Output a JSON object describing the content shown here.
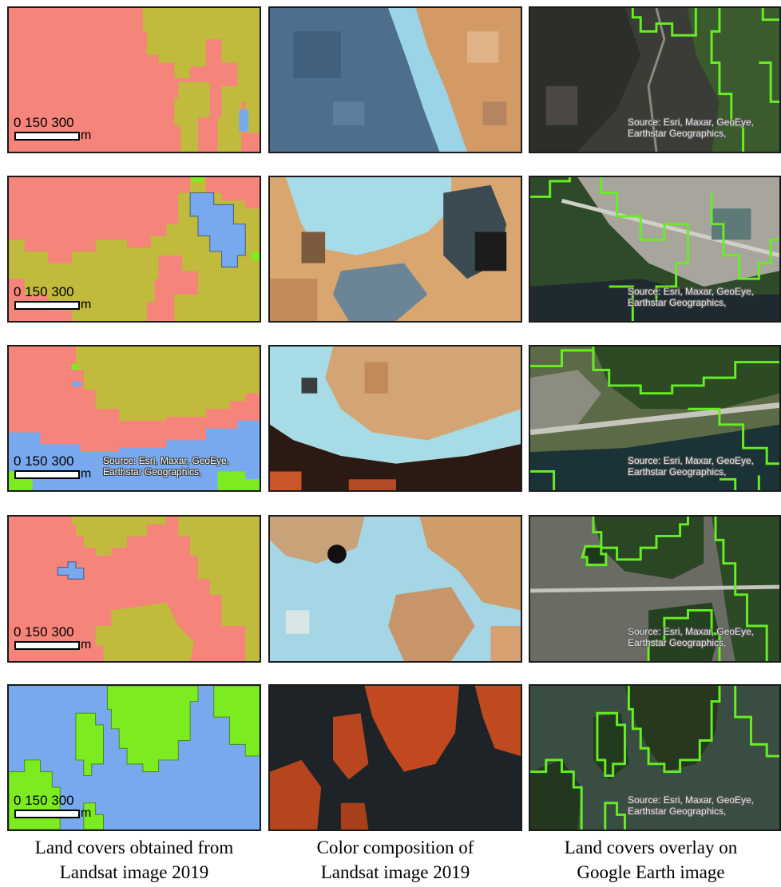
{
  "scale": {
    "numbers": "0   150  300",
    "unit": "m"
  },
  "attribution": {
    "line1": "Source: Esri, Maxar, GeoEye,",
    "line2": "Earthstar Geographics,"
  },
  "captions": {
    "col1": {
      "line1": "Land covers obtained from",
      "line2": "Landsat image 2019"
    },
    "col2": {
      "line1": "Color composition of",
      "line2": "Landsat image 2019"
    },
    "col3": {
      "line1": "Land covers overlay on",
      "line2": "Google Earth image"
    }
  },
  "colors": {
    "class_pink": "#f5847a",
    "class_olive": "#c0bb3c",
    "class_blue": "#78a9ee",
    "class_green": "#7cec20",
    "overlay_outline": "#66ee22"
  }
}
